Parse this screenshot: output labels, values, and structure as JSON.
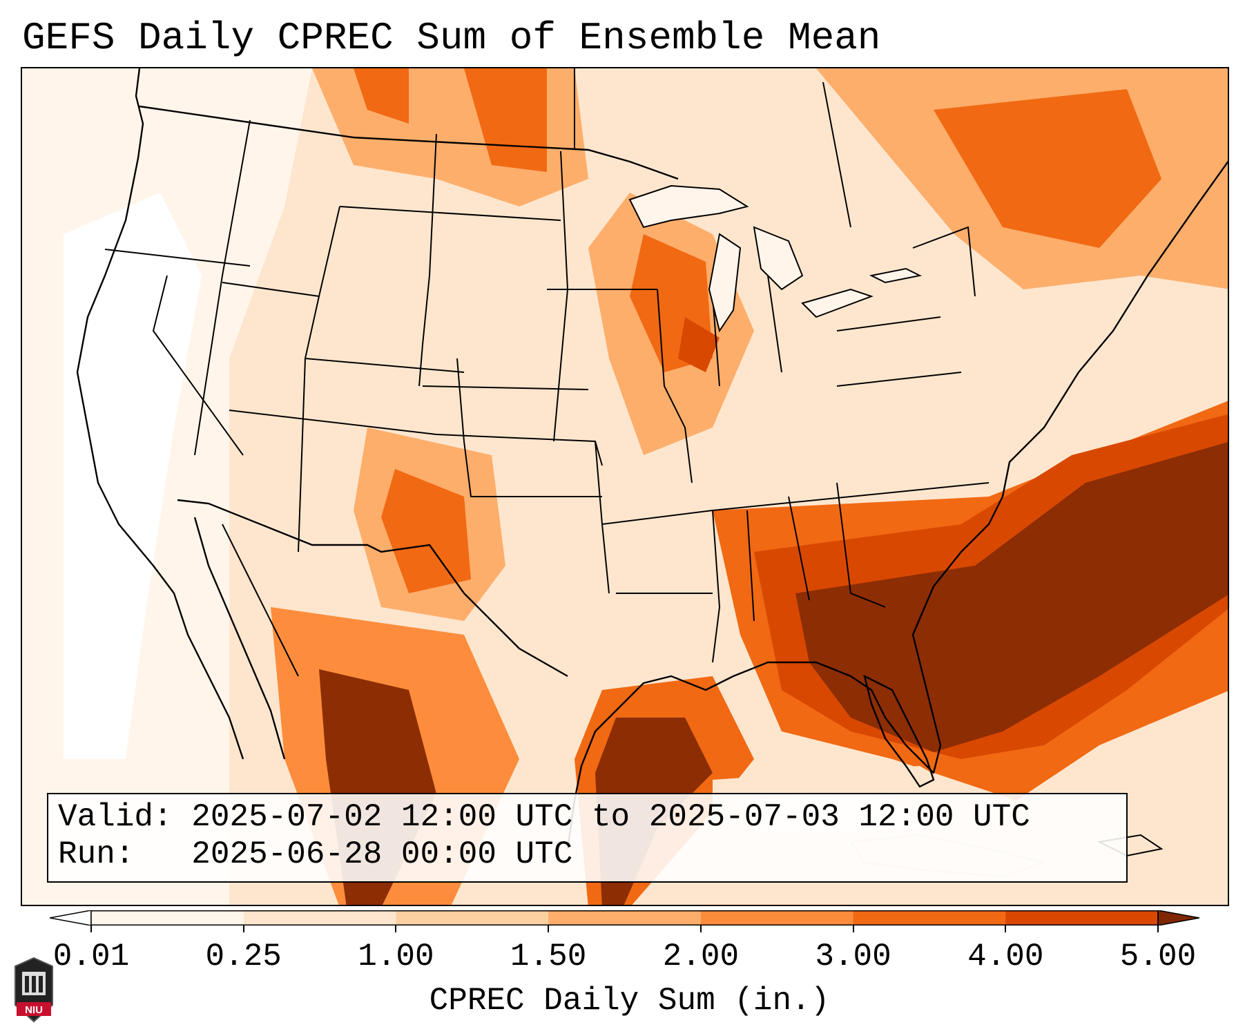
{
  "title": "GEFS Daily CPREC Sum of Ensemble Mean",
  "info": {
    "valid_label": "Valid:",
    "valid_value": "2025-07-02 12:00 UTC to 2025-07-03 12:00 UTC",
    "run_label": "Run:",
    "run_value": "2025-06-28 00:00 UTC"
  },
  "colorbar": {
    "label": "CPREC Daily Sum (in.)",
    "ticks": [
      "0.01",
      "0.25",
      "1.00",
      "1.50",
      "2.00",
      "3.00",
      "4.00",
      "5.00"
    ],
    "colors": [
      "#fff5eb",
      "#fee6ce",
      "#fdd0a2",
      "#fdae6b",
      "#fd8d3c",
      "#f16913",
      "#d94801",
      "#8c2d04"
    ],
    "under_color": "#ffffff",
    "over_color": "#7f2704"
  },
  "logo": {
    "text": "NIU"
  },
  "map": {
    "region": "Continental United States",
    "precip_core": "Southeast US and Gulf Coast, Atlantic offshore"
  }
}
